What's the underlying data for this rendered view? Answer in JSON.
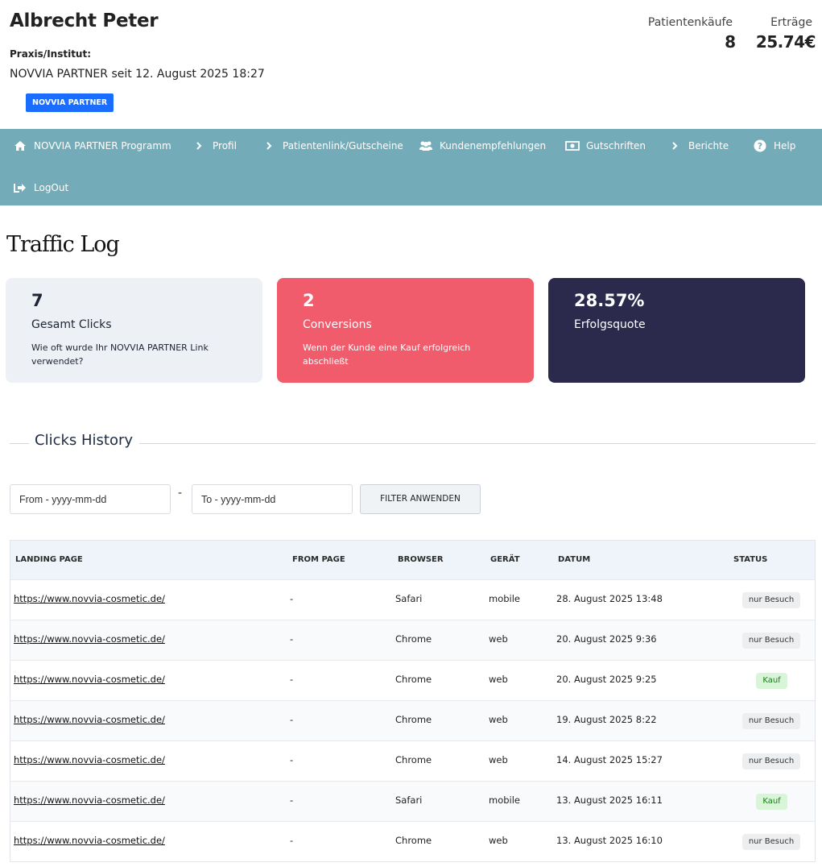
{
  "header": {
    "name": "Albrecht Peter",
    "praxis_label": "Praxis/Institut:",
    "since": "NOVVIA PARTNER seit 12. August 2025 18:27",
    "badge": "NOVVIA PARTNER",
    "purchases_label": "Patientenkäufe",
    "purchases_value": "8",
    "earnings_label": "Erträge",
    "earnings_value": "25.74€"
  },
  "nav": {
    "items": [
      {
        "label": "NOVVIA PARTNER Programm",
        "icon": "home-icon"
      },
      {
        "label": "Profil",
        "icon": "chevron-right-icon"
      },
      {
        "label": "Patientenlink/Gutscheine",
        "icon": "chevron-right-icon"
      },
      {
        "label": "Kundenempfehlungen",
        "icon": "users-icon"
      },
      {
        "label": "Gutschriften",
        "icon": "money-icon"
      },
      {
        "label": "Berichte",
        "icon": "chevron-right-icon"
      },
      {
        "label": "Help",
        "icon": "help-icon"
      },
      {
        "label": "LogOut",
        "icon": "logout-icon"
      }
    ]
  },
  "page_title": "Traffic Log",
  "cards": [
    {
      "value": "7",
      "label": "Gesamt Clicks",
      "desc": "Wie oft wurde Ihr NOVVIA PARTNER Link verwendet?"
    },
    {
      "value": "2",
      "label": "Conversions",
      "desc": "Wenn der Kunde eine Kauf erfolgreich abschließt"
    },
    {
      "value": "28.57%",
      "label": "Erfolgsquote",
      "desc": ""
    }
  ],
  "history": {
    "title": "Clicks History",
    "from_placeholder": "From - yyyy-mm-dd",
    "dash": "-",
    "to_placeholder": "To - yyyy-mm-dd",
    "filter_label": "FILTER ANWENDEN"
  },
  "table": {
    "headers": [
      "LANDING PAGE",
      "FROM PAGE",
      "BROWSER",
      "GERÄT",
      "DATUM",
      "STATUS"
    ],
    "rows": [
      {
        "landing": "https://www.novvia-cosmetic.de/",
        "from": "-",
        "browser": "Safari",
        "device": "mobile",
        "date": "28. August 2025 13:48",
        "status": "nur Besuch"
      },
      {
        "landing": "https://www.novvia-cosmetic.de/",
        "from": "-",
        "browser": "Chrome",
        "device": "web",
        "date": "20. August 2025 9:36",
        "status": "nur Besuch"
      },
      {
        "landing": "https://www.novvia-cosmetic.de/",
        "from": "-",
        "browser": "Chrome",
        "device": "web",
        "date": "20. August 2025 9:25",
        "status": "Kauf"
      },
      {
        "landing": "https://www.novvia-cosmetic.de/",
        "from": "-",
        "browser": "Chrome",
        "device": "web",
        "date": "19. August 2025 8:22",
        "status": "nur Besuch"
      },
      {
        "landing": "https://www.novvia-cosmetic.de/",
        "from": "-",
        "browser": "Chrome",
        "device": "web",
        "date": "14. August 2025 15:27",
        "status": "nur Besuch"
      },
      {
        "landing": "https://www.novvia-cosmetic.de/",
        "from": "-",
        "browser": "Safari",
        "device": "mobile",
        "date": "13. August 2025 16:11",
        "status": "Kauf"
      },
      {
        "landing": "https://www.novvia-cosmetic.de/",
        "from": "-",
        "browser": "Chrome",
        "device": "web",
        "date": "13. August 2025 16:10",
        "status": "nur Besuch"
      }
    ]
  },
  "colors": {
    "nav_bg": "#73acb8",
    "badge_blue": "#1a6dff",
    "card_red": "#f15c6c",
    "card_navy": "#2b2a4d",
    "card_light": "#edf1f5"
  }
}
